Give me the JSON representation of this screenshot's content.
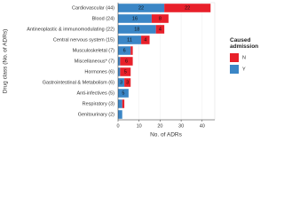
{
  "chart_data": {
    "type": "bar",
    "orientation": "horizontal",
    "stacked": true,
    "xlabel": "No. of ADRs",
    "ylabel": "Drug class (No. of ADRs)",
    "legend_title": "Caused admission",
    "legend_position": "right",
    "categories": [
      "Cardiovascular (44)",
      "Blood (24)",
      "Antineoplastic & immunomodulating (22)",
      "Central nervous system (15)",
      "Musculoskeletal (7)",
      "Miscellaneous* (7)",
      "Hormones (6)",
      "Gastrointestinal & Metabolism (6)",
      "Anti-infectives (5)",
      "Respiratory (3)",
      "Genitourinary (2)"
    ],
    "series": [
      {
        "name": "N",
        "color": "#e8202a",
        "values": [
          22,
          8,
          4,
          4,
          1,
          6,
          5,
          3,
          0,
          1,
          0
        ]
      },
      {
        "name": "Y",
        "color": "#3b86c6",
        "values": [
          22,
          16,
          18,
          11,
          6,
          1,
          1,
          3,
          5,
          2,
          2
        ]
      }
    ],
    "xlim": [
      0,
      46
    ],
    "xticks": [
      0,
      10,
      20,
      30,
      40
    ],
    "grid": true
  }
}
